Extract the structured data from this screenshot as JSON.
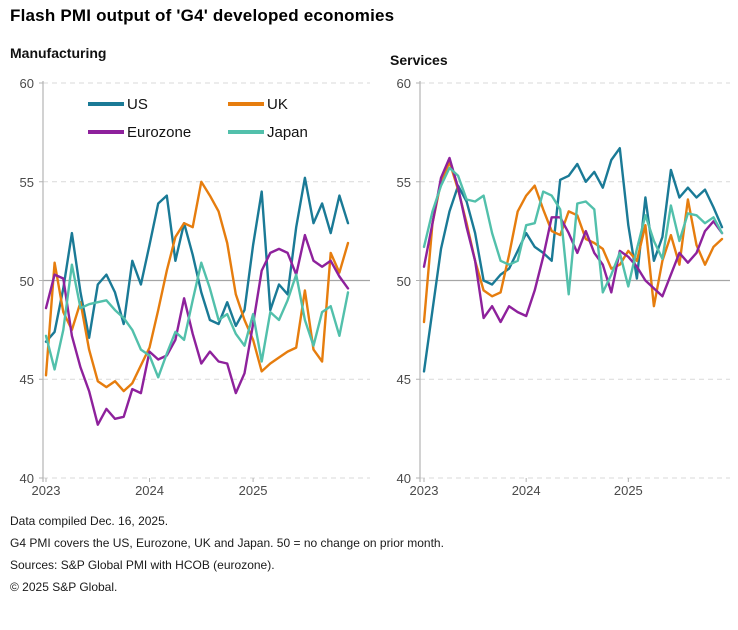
{
  "header": {
    "title": "Flash PMI output of 'G4' developed economies"
  },
  "colors": {
    "us": "#1a7a96",
    "uk": "#e67d0e",
    "eurozone": "#8e219c",
    "japan": "#52c0ab",
    "grid_dashed": "#d9d9d9",
    "grid_baseline": "#a6a6a6",
    "axis_spine": "#b3b3b3",
    "tick_text": "#4a4a4a"
  },
  "chart_data": [
    {
      "type": "line",
      "title": "Manufacturing",
      "x_range": "Jan 2023 - Dec 2025, monthly",
      "x_tick_labels": [
        "2023",
        "2024",
        "2025"
      ],
      "x_tick_month_index": [
        0,
        12,
        24
      ],
      "ylim": [
        40,
        60
      ],
      "y_ticks": [
        60,
        55,
        50,
        45,
        40
      ],
      "baseline": 50,
      "grid": "dashed horizontal, solid line at 50",
      "legend_position": "top-left-inside",
      "series": [
        {
          "name": "US",
          "color_key": "us",
          "values": [
            46.9,
            47.4,
            49.6,
            52.4,
            49.4,
            47.1,
            49.8,
            50.3,
            49.4,
            47.8,
            51.0,
            49.8,
            51.8,
            53.9,
            54.3,
            51.0,
            52.9,
            51.3,
            49.4,
            48.0,
            47.8,
            48.9,
            47.7,
            48.5,
            51.8,
            54.5,
            48.5,
            49.8,
            49.3,
            52.7,
            55.2,
            52.9,
            53.9,
            52.4,
            54.3,
            52.9
          ]
        },
        {
          "name": "UK",
          "color_key": "uk",
          "values": [
            45.2,
            50.9,
            48.4,
            47.5,
            48.9,
            46.5,
            44.9,
            44.6,
            44.9,
            44.4,
            44.8,
            45.7,
            46.6,
            48.5,
            50.5,
            52.2,
            52.9,
            52.7,
            55.0,
            54.3,
            53.5,
            51.9,
            49.3,
            48.0,
            47.0,
            45.4,
            45.8,
            46.1,
            46.4,
            46.6,
            49.5,
            46.5,
            45.9,
            51.4,
            50.4,
            51.9
          ]
        },
        {
          "name": "Eurozone",
          "color_key": "eurozone",
          "values": [
            48.6,
            50.3,
            50.1,
            47.2,
            45.6,
            44.4,
            42.7,
            43.5,
            43.0,
            43.1,
            44.5,
            44.3,
            46.4,
            46.0,
            46.2,
            47.0,
            49.1,
            47.3,
            45.8,
            46.4,
            45.9,
            45.8,
            44.3,
            45.3,
            47.8,
            50.5,
            51.4,
            51.6,
            51.4,
            50.3,
            52.3,
            51.0,
            50.7,
            51.0,
            50.2,
            49.6
          ]
        },
        {
          "name": "Japan",
          "color_key": "japan",
          "values": [
            47.2,
            45.5,
            47.5,
            50.8,
            48.6,
            48.8,
            48.9,
            49.0,
            48.5,
            48.1,
            47.5,
            46.5,
            46.2,
            45.1,
            46.3,
            47.4,
            47.0,
            49.0,
            50.9,
            49.6,
            48.0,
            48.3,
            47.3,
            46.7,
            48.3,
            45.9,
            48.4,
            48.0,
            49.0,
            50.3,
            48.0,
            46.7,
            48.4,
            48.7,
            47.2,
            49.4
          ]
        }
      ]
    },
    {
      "type": "line",
      "title": "Services",
      "x_range": "Jan 2023 - Dec 2025, monthly",
      "x_tick_labels": [
        "2023",
        "2024",
        "2025"
      ],
      "x_tick_month_index": [
        0,
        12,
        24
      ],
      "ylim": [
        40,
        60
      ],
      "y_ticks": [
        60,
        55,
        50,
        45,
        40
      ],
      "baseline": 50,
      "grid": "dashed horizontal, solid line at 50",
      "legend_position": "none",
      "series": [
        {
          "name": "US",
          "color_key": "us",
          "values": [
            45.4,
            48.5,
            51.6,
            53.5,
            54.8,
            54.0,
            52.4,
            50.0,
            49.8,
            50.3,
            50.6,
            51.5,
            52.4,
            51.7,
            51.4,
            51.0,
            55.1,
            55.3,
            55.9,
            55.0,
            55.5,
            54.7,
            56.1,
            56.7,
            52.8,
            50.1,
            54.2,
            51.0,
            52.2,
            55.6,
            54.2,
            54.7,
            54.2,
            54.6,
            53.7,
            52.7
          ]
        },
        {
          "name": "UK",
          "color_key": "uk",
          "values": [
            47.9,
            52.9,
            55.0,
            56.0,
            54.6,
            52.9,
            51.0,
            49.5,
            49.2,
            49.4,
            51.3,
            53.5,
            54.3,
            54.8,
            53.6,
            52.5,
            52.3,
            53.5,
            53.3,
            52.1,
            51.9,
            51.6,
            50.6,
            50.8,
            51.5,
            51.0,
            52.8,
            48.7,
            51.0,
            52.3,
            50.8,
            54.1,
            51.8,
            50.8,
            51.7,
            52.1
          ]
        },
        {
          "name": "Eurozone",
          "color_key": "eurozone",
          "values": [
            50.7,
            52.9,
            55.2,
            56.2,
            54.7,
            52.7,
            51.0,
            48.1,
            48.7,
            47.9,
            48.7,
            48.4,
            48.2,
            49.5,
            51.2,
            53.2,
            53.2,
            52.4,
            51.4,
            52.5,
            51.4,
            50.8,
            49.4,
            51.5,
            51.2,
            50.7,
            50.0,
            49.6,
            49.2,
            50.3,
            51.4,
            50.9,
            51.4,
            52.5,
            53.0,
            52.4
          ]
        },
        {
          "name": "Japan",
          "color_key": "japan",
          "values": [
            51.7,
            53.5,
            54.8,
            55.7,
            55.3,
            54.1,
            54.0,
            54.3,
            52.4,
            51.0,
            50.8,
            51.0,
            52.8,
            52.9,
            54.5,
            54.3,
            53.6,
            49.3,
            53.9,
            54.0,
            53.6,
            49.4,
            50.3,
            51.4,
            49.7,
            51.6,
            53.3,
            52.0,
            51.1,
            53.8,
            52.0,
            53.4,
            53.3,
            52.9,
            53.2,
            52.4
          ]
        }
      ]
    }
  ],
  "footer": {
    "lines": [
      "Data compiled Dec. 16, 2025.",
      "G4 PMI covers the US, Eurozone, UK and Japan. 50 = no change on prior month.",
      "Sources: S&P Global PMI with HCOB (eurozone).",
      "© 2025 S&P Global."
    ]
  }
}
